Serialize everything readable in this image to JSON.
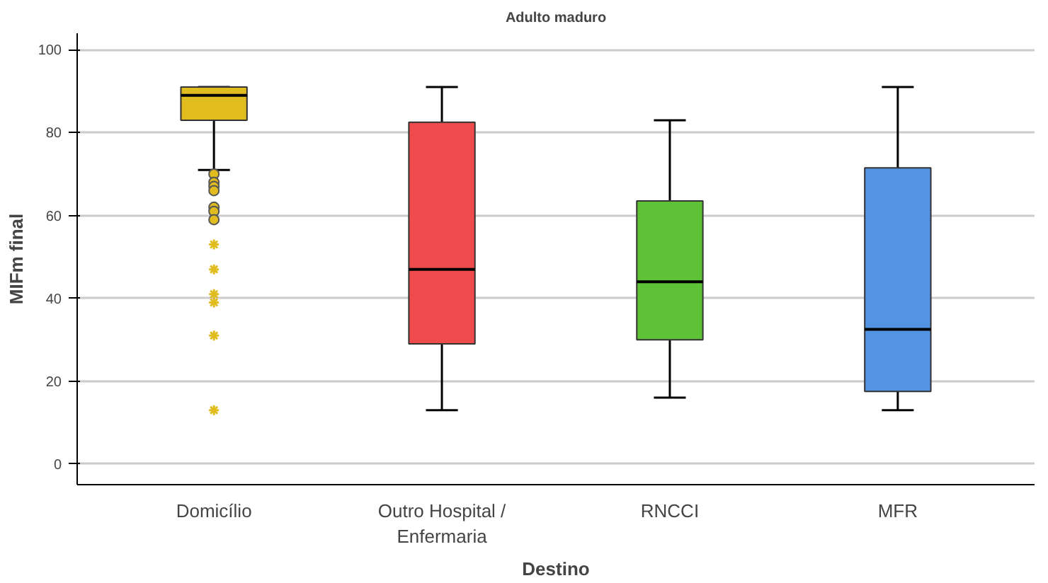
{
  "chart_data": {
    "type": "box",
    "title": "Adulto maduro",
    "xlabel": "Destino",
    "ylabel": "MIFm final",
    "categories": [
      "Domicílio",
      "Outro Hospital /\nEnfermaria",
      "RNCCI",
      "MFR"
    ],
    "colors": [
      "#e1bc1f",
      "#ef4b4c",
      "#5ec236",
      "#5294e2"
    ],
    "boxes": [
      {
        "low": 71,
        "q1": 83,
        "median": 89,
        "q3": 91,
        "high": 91,
        "outliers": [
          70,
          68,
          67,
          66,
          62,
          61,
          59,
          53,
          47,
          41,
          39,
          31,
          13
        ]
      },
      {
        "low": 13,
        "q1": 29,
        "median": 47,
        "q3": 82.5,
        "high": 91
      },
      {
        "low": 16,
        "q1": 30,
        "median": 44,
        "q3": 63.5,
        "high": 83
      },
      {
        "low": 13,
        "q1": 17.5,
        "median": 32.5,
        "q3": 71.5,
        "high": 91
      }
    ],
    "ylim": [
      -5,
      104
    ],
    "yticks": [
      0,
      20,
      40,
      60,
      80,
      100
    ],
    "grid": "y"
  }
}
